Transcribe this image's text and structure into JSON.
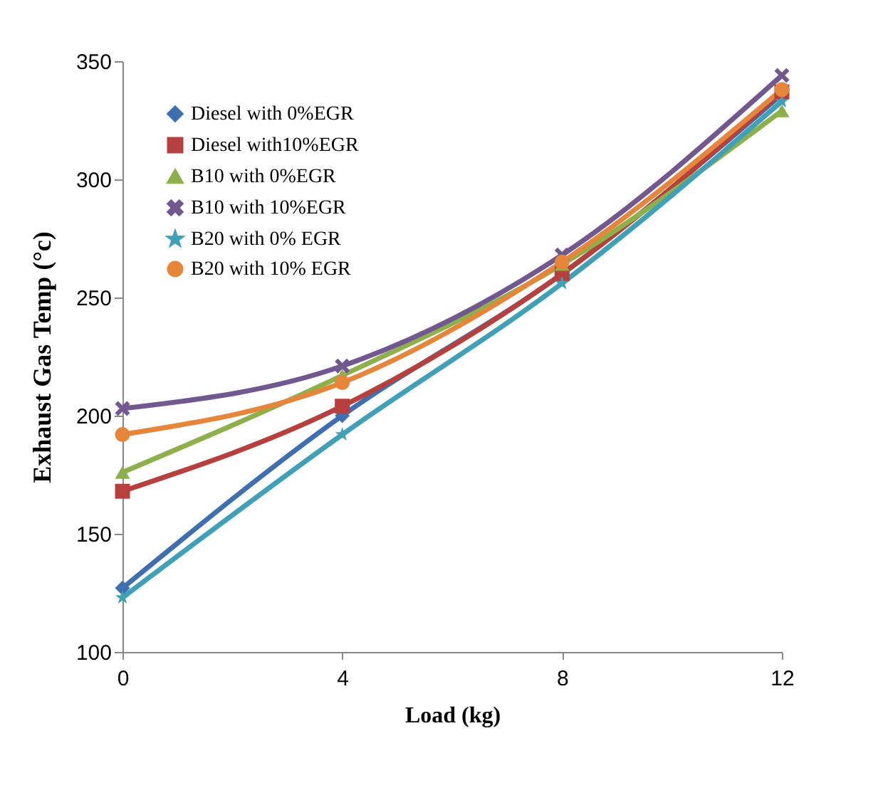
{
  "chart_data": {
    "type": "line",
    "xlabel": "Load (kg)",
    "ylabel": "Exhaust Gas Temp (°c)",
    "x": [
      0,
      4,
      8,
      12
    ],
    "xlim": [
      0,
      12
    ],
    "xticks": [
      0,
      4,
      8,
      12
    ],
    "ylim": [
      100,
      350
    ],
    "yticks": [
      100,
      150,
      200,
      250,
      300,
      350
    ],
    "grid": false,
    "legend": "top left",
    "line_style": "solid",
    "series": [
      {
        "name": "Diesel with 0%EGR",
        "color": "#3e6fb0",
        "marker": "diamond",
        "values": [
          127,
          200,
          260,
          336
        ]
      },
      {
        "name": "Diesel with10%EGR",
        "color": "#b5403d",
        "marker": "square",
        "values": [
          168,
          204,
          260,
          337
        ]
      },
      {
        "name": "B10 with 0%EGR",
        "color": "#8db04a",
        "marker": "triangle",
        "values": [
          176,
          217,
          264,
          329
        ]
      },
      {
        "name": "B10 with 10%EGR",
        "color": "#71588f",
        "marker": "cross",
        "values": [
          203,
          221,
          268,
          344
        ]
      },
      {
        "name": "B20 with 0% EGR",
        "color": "#3fa0b8",
        "marker": "star",
        "values": [
          123,
          192,
          256,
          333
        ]
      },
      {
        "name": "B20 with 10% EGR",
        "color": "#e6863a",
        "marker": "circle",
        "values": [
          192,
          214,
          265,
          338
        ]
      }
    ]
  }
}
